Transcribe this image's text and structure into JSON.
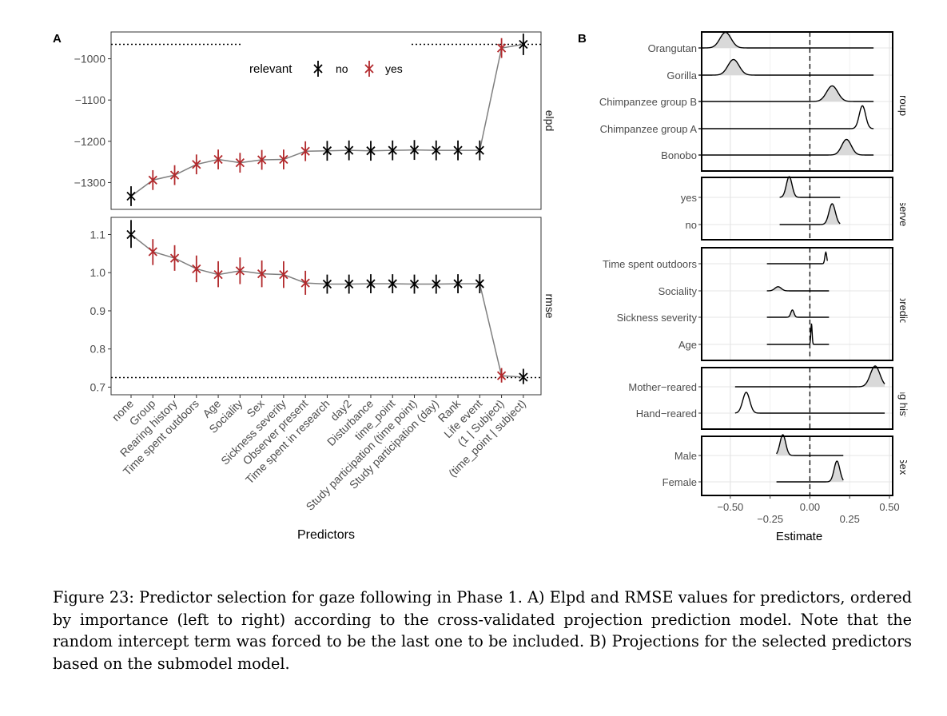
{
  "figure": {
    "panel_a_label": "A",
    "panel_b_label": "B",
    "caption": "Figure 23: Predictor selection for gaze following in Phase 1. A) Elpd and RMSE values for predictors, ordered by importance (left to right) according to the cross-validated projection prediction model. Note that the random intercept term was forced to be the last one to be included. B) Projections for the selected predictors based on the submodel model."
  },
  "chart_data": [
    {
      "type": "line",
      "panel": "A",
      "xlabel": "Predictors",
      "legend": {
        "title": "relevant",
        "placement": "top-center",
        "items": [
          {
            "label": "no",
            "color": "#000000"
          },
          {
            "label": "yes",
            "color": "#b2292c"
          }
        ]
      },
      "categories": [
        "none",
        "Group",
        "Rearing history",
        "Time spent outdoors",
        "Age",
        "Sociality",
        "Sex",
        "Sickness severity",
        "Observer present",
        "Time spent in research",
        "day2",
        "Disturbance",
        "time_point",
        "Study participation (time point)",
        "Study participation (day)",
        "Rank",
        "Life event",
        "(1 | Subject)",
        "(time_point | subject)"
      ],
      "relevant": [
        "no",
        "yes",
        "yes",
        "yes",
        "yes",
        "yes",
        "yes",
        "yes",
        "yes",
        "no",
        "no",
        "no",
        "no",
        "no",
        "no",
        "no",
        "no",
        "yes",
        "no"
      ],
      "facets": [
        {
          "name": "elpd",
          "ylim": [
            -1365,
            -935
          ],
          "yticks": [
            -1000,
            -1100,
            -1200,
            -1300
          ],
          "ytick_labels": [
            "−1000",
            "−1100",
            "−1200",
            "−1300"
          ],
          "reference_line": -965,
          "values": [
            -1333,
            -1294,
            -1282,
            -1256,
            -1244,
            -1252,
            -1245,
            -1244,
            -1224,
            -1223,
            -1222,
            -1223,
            -1222,
            -1221,
            -1222,
            -1222,
            -1222,
            -974,
            -965
          ],
          "lower": [
            -1357,
            -1318,
            -1306,
            -1280,
            -1268,
            -1276,
            -1269,
            -1268,
            -1248,
            -1247,
            -1246,
            -1247,
            -1246,
            -1245,
            -1246,
            -1246,
            -1246,
            -998,
            -991
          ],
          "upper": [
            -1309,
            -1270,
            -1258,
            -1232,
            -1220,
            -1228,
            -1221,
            -1220,
            -1200,
            -1199,
            -1198,
            -1199,
            -1198,
            -1197,
            -1198,
            -1198,
            -1198,
            -950,
            -939
          ]
        },
        {
          "name": "rmse",
          "ylim": [
            0.68,
            1.145
          ],
          "yticks": [
            0.7,
            0.8,
            0.9,
            1.0,
            1.1
          ],
          "ytick_labels": [
            "0.7",
            "0.8",
            "0.9",
            "1.0",
            "1.1"
          ],
          "reference_line": 0.725,
          "values": [
            1.1,
            1.055,
            1.038,
            1.01,
            0.995,
            1.005,
            0.997,
            0.995,
            0.973,
            0.97,
            0.97,
            0.971,
            0.971,
            0.97,
            0.97,
            0.971,
            0.971,
            0.73,
            0.726
          ],
          "lower": [
            1.065,
            1.02,
            1.005,
            0.975,
            0.962,
            0.97,
            0.962,
            0.96,
            0.942,
            0.945,
            0.945,
            0.946,
            0.946,
            0.945,
            0.945,
            0.946,
            0.946,
            0.712,
            0.708
          ],
          "upper": [
            1.138,
            1.088,
            1.072,
            1.045,
            1.03,
            1.04,
            1.032,
            1.03,
            1.005,
            0.995,
            0.995,
            0.996,
            0.996,
            0.995,
            0.995,
            0.996,
            0.996,
            0.75,
            0.748
          ]
        }
      ]
    },
    {
      "type": "area",
      "panel": "B",
      "xlabel": "Estimate",
      "xlim": [
        -0.68,
        0.52
      ],
      "xticks_upper": [
        -0.5,
        0.0,
        0.5
      ],
      "xtick_labels_upper": [
        "−0.50",
        "0.00",
        "0.50"
      ],
      "xticks_lower": [
        -0.25,
        0.25
      ],
      "xtick_labels_lower": [
        "−0.25",
        "0.25"
      ],
      "zero_line": 0.0,
      "facets": [
        {
          "name": "Group",
          "label": "Group",
          "rows": [
            {
              "label": "Orangutan",
              "peak": -0.53,
              "sd": 0.035,
              "height": 0.75,
              "left": -0.7,
              "right": 0.4,
              "shaded": true
            },
            {
              "label": "Gorilla",
              "peak": -0.48,
              "sd": 0.035,
              "height": 0.75,
              "left": -0.7,
              "right": 0.4,
              "shaded": true
            },
            {
              "label": "Chimpanzee group B",
              "peak": 0.14,
              "sd": 0.035,
              "height": 0.75,
              "left": -0.7,
              "right": 0.4,
              "shaded": true
            },
            {
              "label": "Chimpanzee group A",
              "peak": 0.33,
              "sd": 0.02,
              "height": 1.1,
              "left": -0.7,
              "right": 0.4,
              "shaded": false
            },
            {
              "label": "Bonobo",
              "peak": 0.23,
              "sd": 0.03,
              "height": 0.75,
              "left": -0.7,
              "right": 0.4,
              "shaded": true
            }
          ]
        },
        {
          "name": "Observer",
          "label": "Observer",
          "rows": [
            {
              "label": "yes",
              "peak": -0.13,
              "sd": 0.018,
              "height": 1.0,
              "left": -0.19,
              "right": 0.19,
              "shaded": true
            },
            {
              "label": "no",
              "peak": 0.14,
              "sd": 0.02,
              "height": 1.0,
              "left": -0.19,
              "right": 0.19,
              "shaded": true
            }
          ]
        },
        {
          "name": "Other predictors",
          "label": "Other predictors",
          "rows": [
            {
              "label": "Time spent outdoors",
              "peak": 0.1,
              "sd": 0.006,
              "height": 0.55,
              "left": -0.27,
              "right": 0.11,
              "shaded": false
            },
            {
              "label": "Sociality",
              "peak": -0.2,
              "sd": 0.02,
              "height": 0.2,
              "left": -0.27,
              "right": 0.12,
              "shaded": true
            },
            {
              "label": "Sickness severity",
              "peak": -0.11,
              "sd": 0.01,
              "height": 0.35,
              "left": -0.27,
              "right": 0.12,
              "shaded": true
            },
            {
              "label": "Age",
              "peak": 0.01,
              "sd": 0.004,
              "height": 1.0,
              "left": -0.27,
              "right": 0.12,
              "shaded": false
            }
          ]
        },
        {
          "name": "Rearing history",
          "label": "Rearing history",
          "rows": [
            {
              "label": "Mother−reared",
              "peak": 0.41,
              "sd": 0.03,
              "height": 1.0,
              "left": -0.47,
              "right": 0.47,
              "shaded": true
            },
            {
              "label": "Hand−reared",
              "peak": -0.4,
              "sd": 0.022,
              "height": 1.0,
              "left": -0.47,
              "right": 0.47,
              "shaded": false
            }
          ]
        },
        {
          "name": "Sex",
          "label": "Sex",
          "rows": [
            {
              "label": "Male",
              "peak": -0.17,
              "sd": 0.018,
              "height": 1.0,
              "left": -0.21,
              "right": 0.21,
              "shaded": true
            },
            {
              "label": "Female",
              "peak": 0.17,
              "sd": 0.018,
              "height": 1.0,
              "left": -0.21,
              "right": 0.21,
              "shaded": true
            }
          ]
        }
      ]
    }
  ]
}
